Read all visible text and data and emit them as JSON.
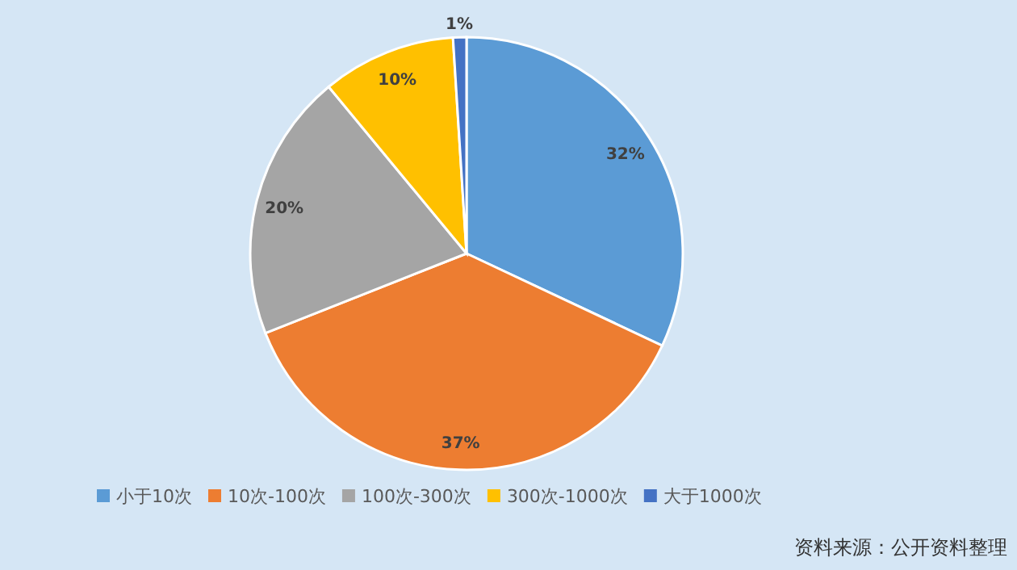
{
  "chart_data": {
    "type": "pie",
    "categories": [
      "小于10次",
      "10次-100次",
      "100次-300次",
      "300次-1000次",
      "大于1000次"
    ],
    "values": [
      32,
      37,
      20,
      10,
      1
    ],
    "colors": [
      "#5b9bd5",
      "#ed7d31",
      "#a5a5a5",
      "#ffc000",
      "#4472c4"
    ],
    "value_labels": [
      "32%",
      "37%",
      "20%",
      "10%",
      "1%"
    ],
    "legend": "bottom",
    "annotations": [
      "资料来源：公开资料整理"
    ]
  }
}
